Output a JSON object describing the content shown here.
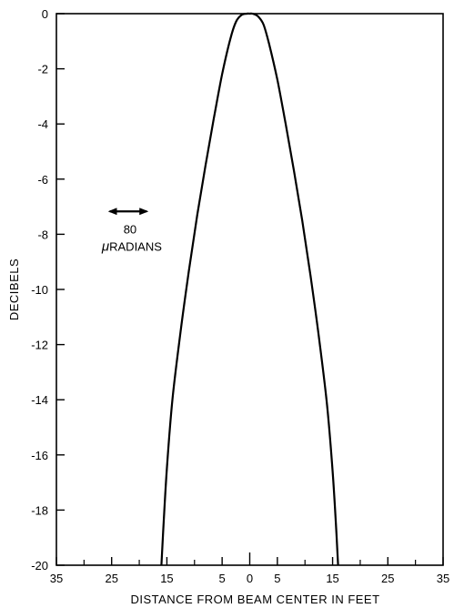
{
  "chart_data": {
    "type": "line",
    "title": "",
    "xlabel": "DISTANCE FROM BEAM CENTER IN FEET",
    "ylabel": "DECIBELS",
    "xlim": [
      -35,
      35
    ],
    "ylim": [
      -20,
      0
    ],
    "x_ticks": [
      -35,
      -25,
      -15,
      -5,
      0,
      5,
      15,
      25,
      35
    ],
    "x_tick_labels": [
      "35",
      "25",
      "15",
      "5",
      "0",
      "5",
      "15",
      "25",
      "35"
    ],
    "x_minor_ticks": [
      -30,
      -20,
      -10,
      10,
      20,
      30
    ],
    "y_ticks": [
      0,
      -2,
      -4,
      -6,
      -8,
      -10,
      -12,
      -14,
      -16,
      -18,
      -20
    ],
    "y_tick_labels": [
      "0",
      "-2",
      "-4",
      "-6",
      "-8",
      "-10",
      "-12",
      "-14",
      "-16",
      "-18",
      "-20"
    ],
    "grid": false,
    "legend": "none",
    "series": [
      {
        "x": [
          -16.0,
          -15.6,
          -15.0,
          -14.0,
          -12.5,
          -11.0,
          -9.5,
          -8.0,
          -6.5,
          -5.0,
          -3.5,
          -2.5,
          -1.5,
          -0.5,
          0.0,
          0.5,
          1.5,
          2.5,
          3.5,
          5.0,
          6.5,
          8.0,
          9.5,
          11.0,
          12.5,
          14.0,
          15.0,
          15.6,
          16.0
        ],
        "y": [
          -20.0,
          -18.5,
          -16.5,
          -14.0,
          -11.5,
          -9.3,
          -7.3,
          -5.5,
          -3.8,
          -2.2,
          -0.9,
          -0.3,
          -0.05,
          0.0,
          0.0,
          0.0,
          -0.1,
          -0.4,
          -1.1,
          -2.4,
          -4.0,
          -5.7,
          -7.5,
          -9.5,
          -11.7,
          -14.2,
          -16.6,
          -18.5,
          -20.0
        ]
      }
    ],
    "annotation": {
      "arrow_x": [
        -25.5,
        -18.5
      ],
      "arrow_y": -7.5,
      "value_text": "80",
      "mu": "μ",
      "unit_text": "RADIANS"
    }
  }
}
